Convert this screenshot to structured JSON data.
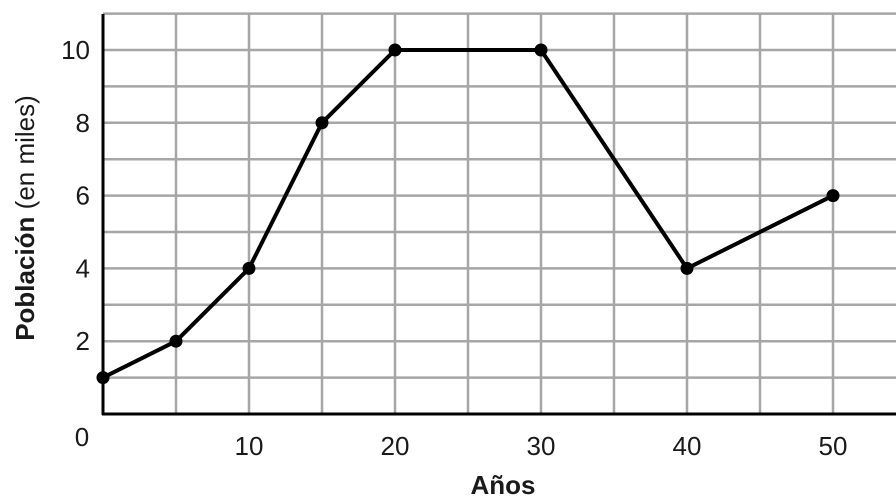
{
  "chart_data": {
    "type": "line",
    "title": "",
    "xlabel": "Años",
    "ylabel_bold": "Población",
    "ylabel_rest": " (en miles)",
    "x": [
      0,
      5,
      10,
      15,
      20,
      30,
      40,
      50
    ],
    "series": [
      {
        "values": [
          1,
          2,
          4,
          8,
          10,
          10,
          4,
          6
        ]
      }
    ],
    "xlim": [
      0,
      55
    ],
    "ylim": [
      0,
      11
    ],
    "x_ticks": [
      10,
      20,
      30,
      40,
      50
    ],
    "y_ticks": [
      2,
      4,
      6,
      8,
      10
    ],
    "origin_label": "0",
    "grid": true,
    "grid_x_step": 5,
    "grid_y_step": 1,
    "colors": {
      "line": "#000000",
      "grid": "#a6a6a6",
      "axis": "#000000"
    }
  }
}
